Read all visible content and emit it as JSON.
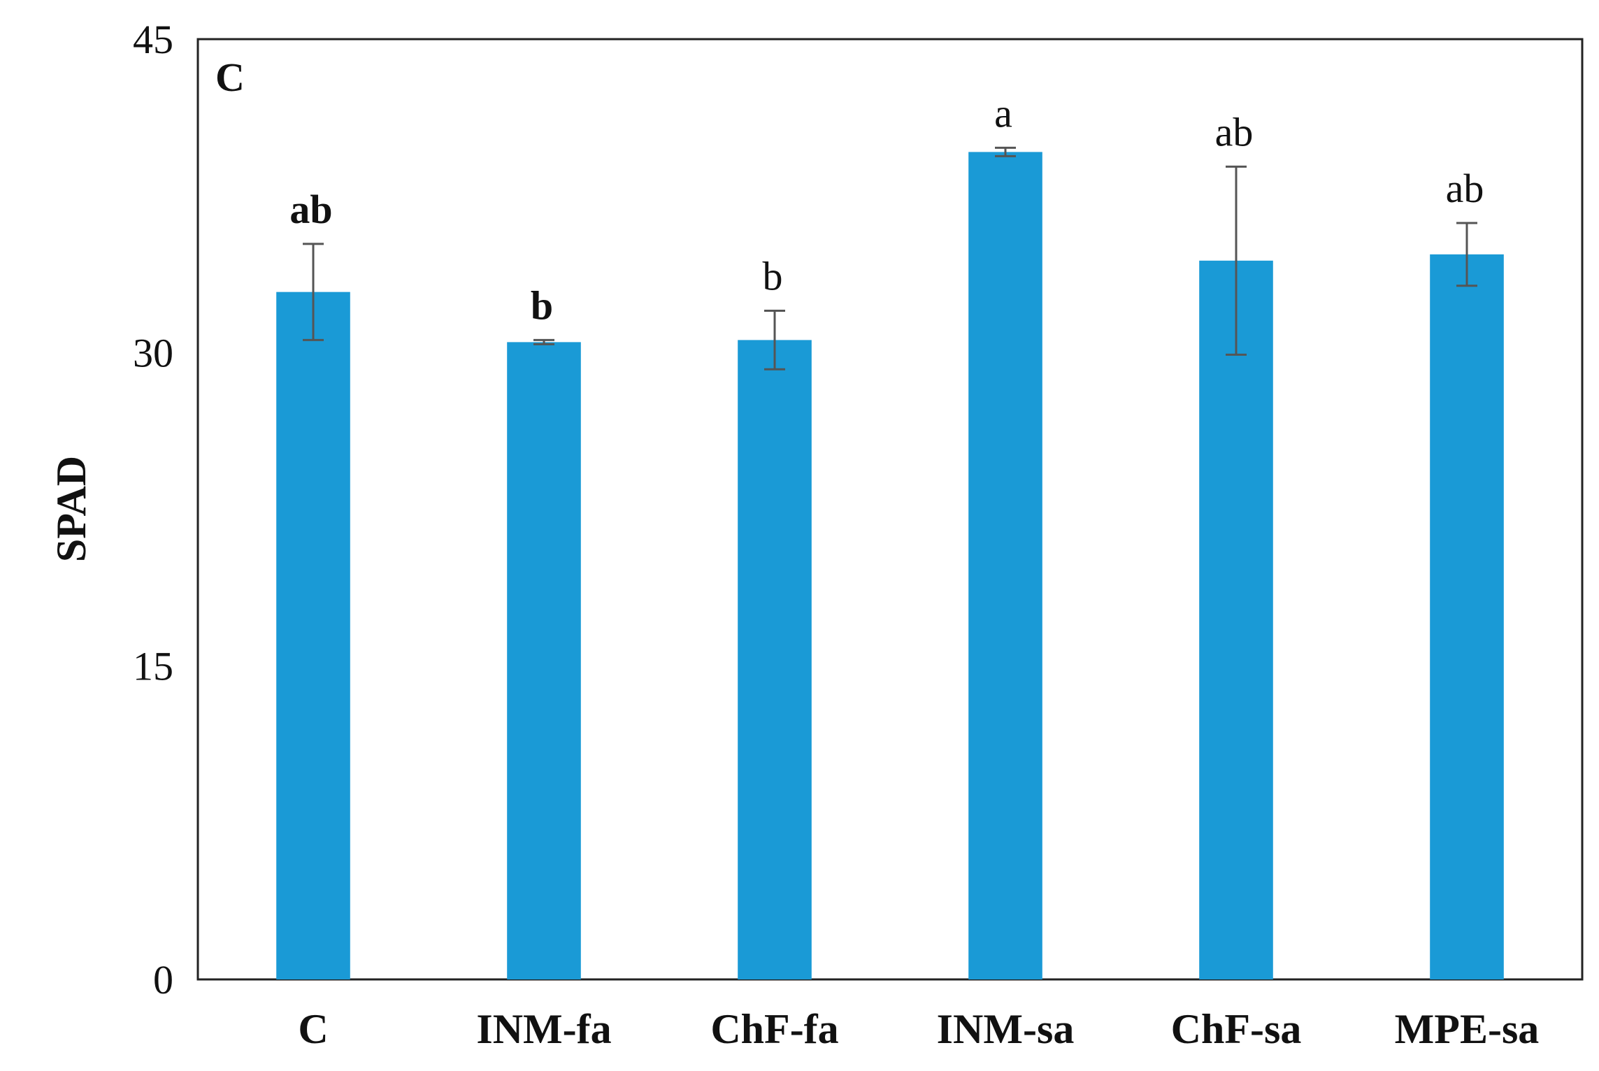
{
  "chart_data": {
    "type": "bar",
    "panel_label": "C",
    "ylabel": "SPAD",
    "ylim": [
      0,
      45
    ],
    "yticks": [
      "0",
      "15",
      "30",
      "45"
    ],
    "ytick_values": [
      0,
      15,
      30,
      45
    ],
    "grid": false,
    "bar_color": "#1a9ad6",
    "errorbar_color": "#555555",
    "categories": [
      "C",
      "INM-fa",
      "ChF-fa",
      "INM-sa",
      "ChF-sa",
      "MPE-sa"
    ],
    "values": [
      32.9,
      30.5,
      30.6,
      39.6,
      34.4,
      34.7
    ],
    "errors": [
      2.3,
      0.1,
      1.4,
      0.2,
      4.5,
      1.5
    ],
    "significance": [
      "ab",
      "b",
      "b",
      "a",
      "ab",
      "ab"
    ],
    "significance_bold": [
      true,
      true,
      false,
      false,
      false,
      false
    ]
  }
}
